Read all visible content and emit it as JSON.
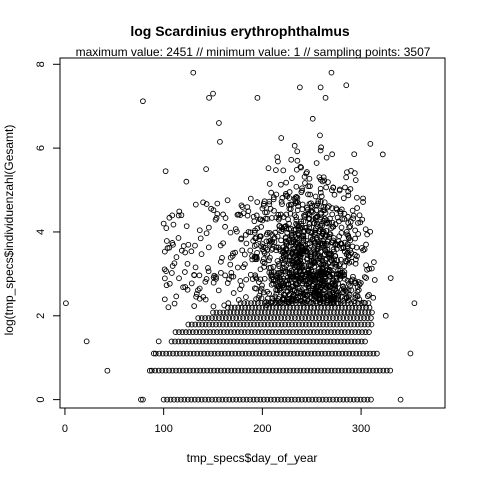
{
  "chart_data": {
    "type": "scatter",
    "title": "log Scardinius erythrophthalmus",
    "subtitle": "maximum value: 2451  //  minimum value: 1  // sampling points: 3507",
    "xlabel": "tmp_specs$day_of_year",
    "ylabel": "log(tmp_specs$individuenzahl(Gesamt)",
    "xlim": [
      -5,
      385
    ],
    "ylim": [
      -0.2,
      8.15
    ],
    "x_ticks": [
      0,
      100,
      200,
      300
    ],
    "y_ticks": [
      0,
      2,
      4,
      6,
      8
    ],
    "grid": false,
    "marker": "open-circle",
    "points_sample": [
      {
        "x": 1,
        "y": 2.3
      },
      {
        "x": 22,
        "y": 1.39
      },
      {
        "x": 43,
        "y": 0.69
      },
      {
        "x": 77,
        "y": 0
      },
      {
        "x": 79,
        "y": 0
      },
      {
        "x": 79,
        "y": 7.12
      },
      {
        "x": 86,
        "y": 0.69
      },
      {
        "x": 90,
        "y": 1.1
      },
      {
        "x": 95,
        "y": 1.39
      },
      {
        "x": 130,
        "y": 7.8
      },
      {
        "x": 156,
        "y": 6.6
      },
      {
        "x": 150,
        "y": 7.3
      },
      {
        "x": 146,
        "y": 7.2
      },
      {
        "x": 195,
        "y": 7.2
      },
      {
        "x": 238,
        "y": 7.45
      },
      {
        "x": 259,
        "y": 7.45
      },
      {
        "x": 285,
        "y": 7.5
      },
      {
        "x": 270,
        "y": 7.8
      },
      {
        "x": 251,
        "y": 6.7
      },
      {
        "x": 264,
        "y": 7.2
      },
      {
        "x": 322,
        "y": 5.85
      },
      {
        "x": 325,
        "y": 2.0
      },
      {
        "x": 330,
        "y": 2.9
      },
      {
        "x": 340,
        "y": 0
      },
      {
        "x": 350,
        "y": 1.1
      },
      {
        "x": 354,
        "y": 2.3
      },
      {
        "x": 308,
        "y": 2.5
      },
      {
        "x": 305,
        "y": 3.7
      },
      {
        "x": 302,
        "y": 4.8
      },
      {
        "x": 157,
        "y": 6.15
      },
      {
        "x": 143,
        "y": 5.5
      },
      {
        "x": 123,
        "y": 5.2
      },
      {
        "x": 102,
        "y": 5.45
      },
      {
        "x": 100,
        "y": 4.2
      },
      {
        "x": 118,
        "y": 4.4
      }
    ]
  }
}
